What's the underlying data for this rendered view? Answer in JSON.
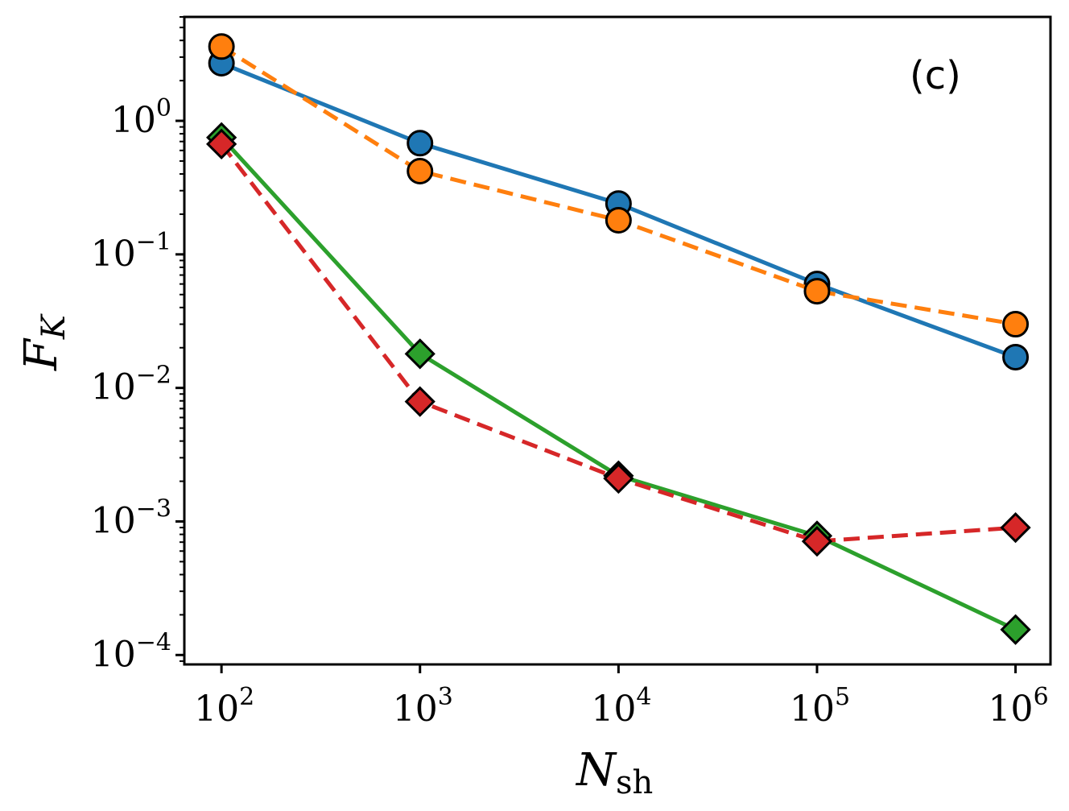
{
  "chart_data": {
    "type": "line",
    "title": "",
    "annotation": "(c)",
    "xlabel": {
      "main": "N",
      "sub": "sh"
    },
    "ylabel": {
      "main": "F",
      "sub": "K"
    },
    "xscale": "log",
    "yscale": "log",
    "xlim": [
      65,
      1500000
    ],
    "ylim": [
      8.5e-05,
      6.0
    ],
    "x": [
      100,
      1000,
      10000,
      100000,
      1000000
    ],
    "x_ticks": [
      {
        "value": 100,
        "base": "10",
        "exp": "2"
      },
      {
        "value": 1000,
        "base": "10",
        "exp": "3"
      },
      {
        "value": 10000,
        "base": "10",
        "exp": "4"
      },
      {
        "value": 100000,
        "base": "10",
        "exp": "5"
      },
      {
        "value": 1000000,
        "base": "10",
        "exp": "6"
      }
    ],
    "y_ticks": [
      {
        "value": 1,
        "base": "10",
        "exp": "0"
      },
      {
        "value": 0.1,
        "base": "10",
        "exp": "−1"
      },
      {
        "value": 0.01,
        "base": "10",
        "exp": "−2"
      },
      {
        "value": 0.001,
        "base": "10",
        "exp": "−3"
      },
      {
        "value": 0.0001,
        "base": "10",
        "exp": "−4"
      }
    ],
    "grid": false,
    "legend": null,
    "series": [
      {
        "name": "blue-circles",
        "color": "#1f77b4",
        "dash": "solid",
        "marker": "circle",
        "values": [
          2.7,
          0.68,
          0.24,
          0.06,
          0.017
        ]
      },
      {
        "name": "orange-circles",
        "color": "#ff7f0e",
        "dash": "dashed",
        "marker": "circle",
        "values": [
          3.6,
          0.42,
          0.18,
          0.053,
          0.03
        ]
      },
      {
        "name": "green-diamonds",
        "color": "#2ca02c",
        "dash": "solid",
        "marker": "diamond",
        "values": [
          0.75,
          0.018,
          0.0022,
          0.00078,
          0.000155
        ]
      },
      {
        "name": "red-diamonds",
        "color": "#d62728",
        "dash": "dashed",
        "marker": "diamond",
        "values": [
          0.67,
          0.0079,
          0.0021,
          0.00071,
          0.0009
        ]
      }
    ]
  }
}
